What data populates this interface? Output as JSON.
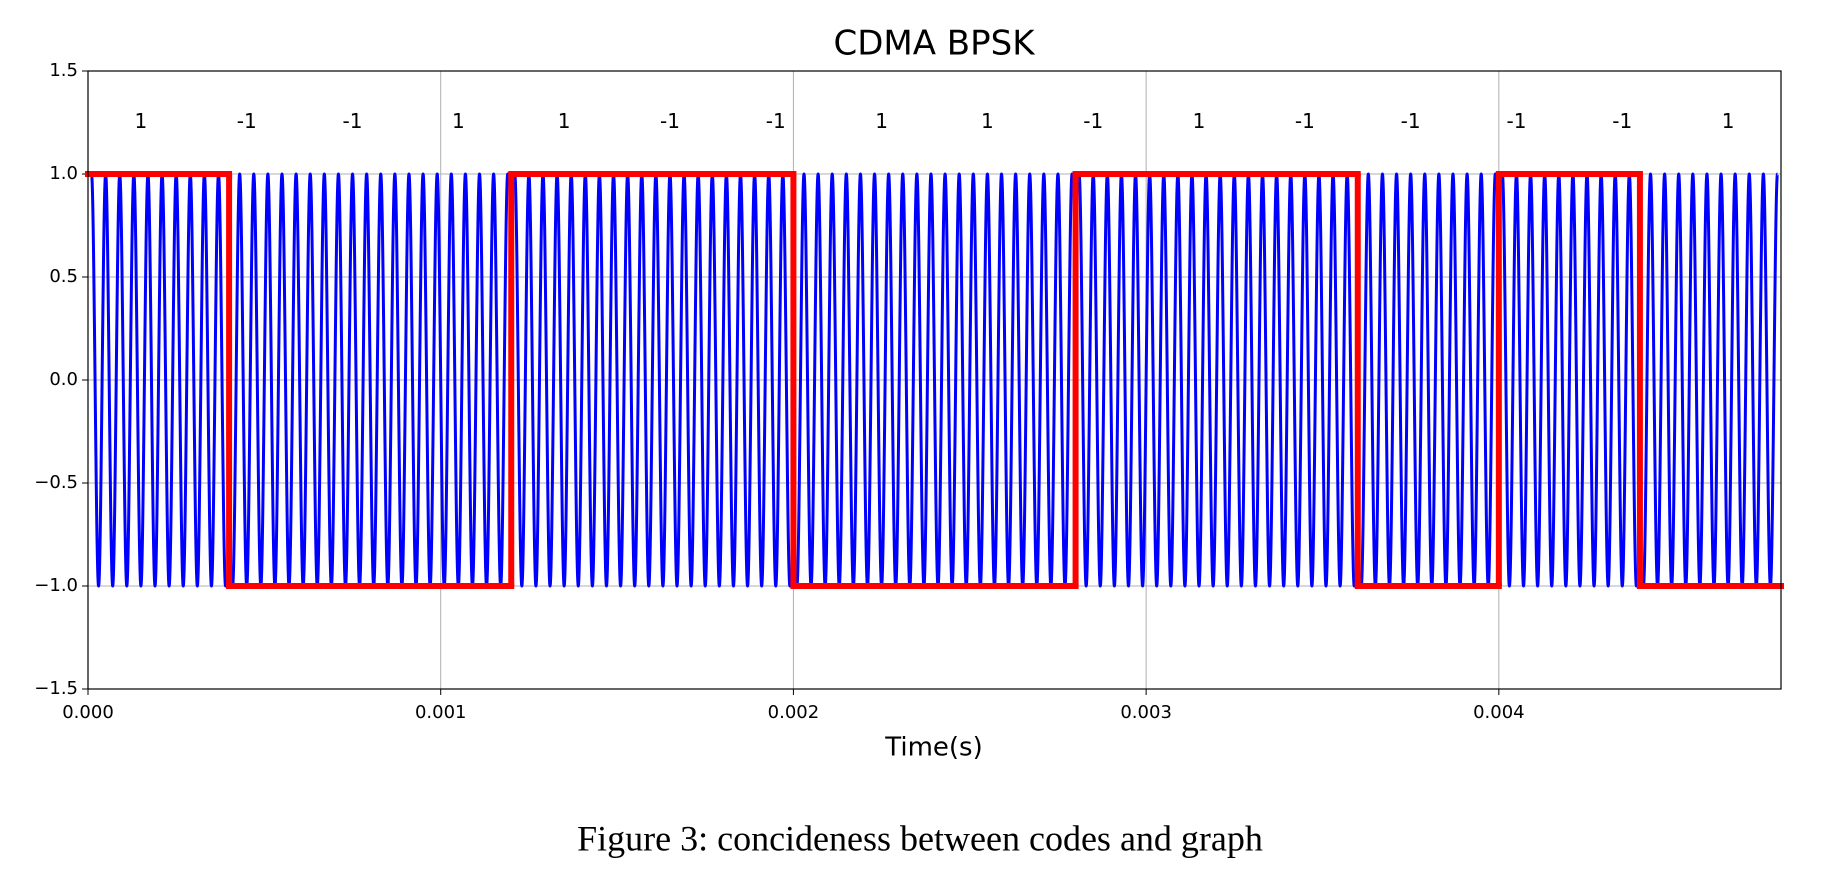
{
  "chart_data": {
    "type": "line",
    "title": "CDMA BPSK",
    "xlabel": "Time(s)",
    "caption": "Figure 3: concideness between codes and graph",
    "xlim": [
      0,
      0.0048
    ],
    "ylim": [
      -1.5,
      1.5
    ],
    "xticks": [
      {
        "value": 0,
        "label": "0.000"
      },
      {
        "value": 0.001,
        "label": "0.001"
      },
      {
        "value": 0.002,
        "label": "0.002"
      },
      {
        "value": 0.003,
        "label": "0.003"
      },
      {
        "value": 0.004,
        "label": "0.004"
      }
    ],
    "yticks": [
      {
        "value": -1.5,
        "label": "−1.5"
      },
      {
        "value": -1,
        "label": "−1.0"
      },
      {
        "value": -0.5,
        "label": "−0.5"
      },
      0.5,
      {
        "value": 0,
        "label": "0.0"
      },
      {
        "value": 1,
        "label": "1.0"
      },
      1.5
    ],
    "grid": true,
    "series": [
      {
        "color": "#0000ff",
        "x": [
          1e-05,
          3e-05,
          5e-05,
          7e-05,
          9e-05,
          0.00011,
          0.00013,
          0.00015,
          0.00017,
          0.00019,
          0.00021,
          0.00023,
          0.00025,
          0.00027,
          0.00029,
          0.00031,
          0.00033,
          0.00035,
          0.00037,
          0.00039,
          0.00041,
          0.00043,
          0.00045,
          0.00047,
          0.00049,
          0.00051,
          0.00053,
          0.00055,
          0.00057,
          0.00059,
          0.00061,
          0.00063,
          0.00065,
          0.00067,
          0.00069,
          0.00071,
          0.00073,
          0.00075,
          0.00077,
          0.00079,
          0.00081,
          0.00083,
          0.00085,
          0.00087,
          0.00089,
          0.00091,
          0.00093,
          0.00095,
          0.00097,
          0.00099,
          0.00101,
          0.00103,
          0.00105,
          0.00107,
          0.00109,
          0.00111,
          0.00113,
          0.00115,
          0.00117,
          0.00119,
          0.00121,
          0.00123,
          0.00125,
          0.00127,
          0.00129,
          0.00131,
          0.00133,
          0.00135,
          0.00137,
          0.00139,
          0.00141,
          0.00143,
          0.00145,
          0.00147,
          0.00149,
          0.00151,
          0.00153,
          0.00155,
          0.00157,
          0.00159,
          0.00161,
          0.00163,
          0.00165,
          0.00167,
          0.00169,
          0.00171,
          0.00173,
          0.00175,
          0.00177,
          0.00179,
          0.00181,
          0.00183,
          0.00185,
          0.00187,
          0.00189,
          0.00191,
          0.00193,
          0.00195,
          0.00197,
          0.00199,
          0.00201,
          0.00203,
          0.00205,
          0.00207,
          0.00209,
          0.00211,
          0.00213,
          0.00215,
          0.00217,
          0.00219,
          0.00221,
          0.00223,
          0.00225,
          0.00227,
          0.00229,
          0.00231,
          0.00233,
          0.00235,
          0.00237,
          0.00239,
          0.00241,
          0.00243,
          0.00245,
          0.00247,
          0.00249,
          0.00251,
          0.00253,
          0.00255,
          0.00257,
          0.00259,
          0.00261,
          0.00263,
          0.00265,
          0.00267,
          0.00269,
          0.00271,
          0.00273,
          0.00275,
          0.00277,
          0.00279,
          0.00281,
          0.00283,
          0.00285,
          0.00287,
          0.00289,
          0.00291,
          0.00293,
          0.00295,
          0.00297,
          0.00299,
          0.00301,
          0.00303,
          0.00305,
          0.00307,
          0.00309,
          0.00311,
          0.00313,
          0.00315,
          0.00317,
          0.00319,
          0.00321,
          0.00323,
          0.00325,
          0.00327,
          0.00329,
          0.00331,
          0.00333,
          0.00335,
          0.00337,
          0.00339,
          0.00341,
          0.00343,
          0.00345,
          0.00347,
          0.00349,
          0.00351,
          0.00353,
          0.00355,
          0.00357,
          0.00359,
          0.00361,
          0.00363,
          0.00365,
          0.00367,
          0.00369,
          0.00371,
          0.00373,
          0.00375,
          0.00377,
          0.00379,
          0.00381,
          0.00383,
          0.00385,
          0.00387,
          0.00389,
          0.00391,
          0.00393,
          0.00395,
          0.00397,
          0.00399,
          0.00401,
          0.00403,
          0.00405,
          0.00407,
          0.00409,
          0.00411,
          0.00413,
          0.00415,
          0.00417,
          0.00419,
          0.00421,
          0.00423,
          0.00425,
          0.00427,
          0.00429,
          0.00431,
          0.00433,
          0.00435,
          0.00437,
          0.00439,
          0.00441,
          0.00443,
          0.00445,
          0.00447,
          0.00449,
          0.00451,
          0.00453,
          0.00455,
          0.00457,
          0.00459,
          0.00461,
          0.00463,
          0.00465,
          0.00467,
          0.00469,
          0.00471,
          0.00473,
          0.00475,
          0.00477,
          0.00479
        ],
        "values": [
          1,
          -1,
          1,
          -1,
          1,
          -1,
          1,
          -1,
          1,
          -1,
          1,
          -1,
          1,
          -1,
          1,
          -1,
          1,
          -1,
          1,
          -1,
          -1,
          1,
          -1,
          1,
          -1,
          1,
          -1,
          1,
          -1,
          1,
          -1,
          1,
          -1,
          1,
          -1,
          1,
          -1,
          1,
          -1,
          1,
          -1,
          1,
          -1,
          1,
          -1,
          1,
          -1,
          1,
          -1,
          1,
          -1,
          1,
          -1,
          1,
          -1,
          1,
          -1,
          1,
          -1,
          1,
          1,
          -1,
          1,
          -1,
          1,
          -1,
          1,
          -1,
          1,
          -1,
          1,
          -1,
          1,
          -1,
          1,
          -1,
          1,
          -1,
          1,
          -1,
          1,
          -1,
          1,
          -1,
          1,
          -1,
          1,
          -1,
          1,
          -1,
          1,
          -1,
          1,
          -1,
          1,
          -1,
          1,
          -1,
          1,
          -1,
          -1,
          1,
          -1,
          1,
          -1,
          1,
          -1,
          1,
          -1,
          1,
          -1,
          1,
          -1,
          1,
          -1,
          1,
          -1,
          1,
          -1,
          1,
          -1,
          1,
          -1,
          1,
          -1,
          1,
          -1,
          1,
          -1,
          1,
          -1,
          1,
          -1,
          1,
          -1,
          1,
          -1,
          1,
          -1,
          1,
          1,
          -1,
          1,
          -1,
          1,
          -1,
          1,
          -1,
          1,
          -1,
          1,
          -1,
          1,
          -1,
          1,
          -1,
          1,
          -1,
          1,
          -1,
          1,
          -1,
          1,
          -1,
          1,
          -1,
          1,
          -1,
          1,
          -1,
          1,
          -1,
          1,
          -1,
          1,
          -1,
          1,
          -1,
          1,
          -1,
          -1,
          1,
          -1,
          1,
          -1,
          1,
          -1,
          1,
          -1,
          1,
          -1,
          1,
          -1,
          1,
          -1,
          1,
          -1,
          1,
          -1,
          1,
          1,
          -1,
          1,
          -1,
          1,
          -1,
          1,
          -1,
          1,
          -1,
          1,
          -1,
          1,
          -1,
          1,
          -1,
          1,
          -1,
          1,
          -1,
          -1,
          1,
          -1,
          1,
          -1,
          1,
          -1,
          1,
          -1,
          1,
          -1,
          1,
          -1,
          1,
          -1,
          1,
          -1,
          1,
          -1,
          1
        ]
      },
      {
        "color": "#ff0000",
        "drawstyle": "steps-post",
        "x": [
          0,
          0.0004,
          0.0012,
          0.002,
          0.0028,
          0.0036,
          0.004,
          0.0044
        ],
        "values": [
          1,
          -1,
          1,
          -1,
          1,
          -1,
          1,
          -1
        ]
      }
    ],
    "annotations": [
      {
        "text": "1",
        "x": 0.00015,
        "y": 1.25
      },
      {
        "text": "-1",
        "x": 0.00045,
        "y": 1.25
      },
      {
        "text": "-1",
        "x": 0.00075,
        "y": 1.25
      },
      {
        "text": "1",
        "x": 0.00105,
        "y": 1.25
      },
      {
        "text": "1",
        "x": 0.00135,
        "y": 1.25
      },
      {
        "text": "-1",
        "x": 0.00165,
        "y": 1.25
      },
      {
        "text": "-1",
        "x": 0.00195,
        "y": 1.25
      },
      {
        "text": "1",
        "x": 0.00225,
        "y": 1.25
      },
      {
        "text": "1",
        "x": 0.00255,
        "y": 1.25
      },
      {
        "text": "-1",
        "x": 0.00285,
        "y": 1.25
      },
      {
        "text": "1",
        "x": 0.00315,
        "y": 1.25
      },
      {
        "text": "-1",
        "x": 0.00345,
        "y": 1.25
      },
      {
        "text": "-1",
        "x": 0.00375,
        "y": 1.25
      },
      {
        "text": "-1",
        "x": 0.00405,
        "y": 1.25
      },
      {
        "text": "-1",
        "x": 0.00435,
        "y": 1.25
      },
      {
        "text": "1",
        "x": 0.00465,
        "y": 1.25
      }
    ]
  }
}
